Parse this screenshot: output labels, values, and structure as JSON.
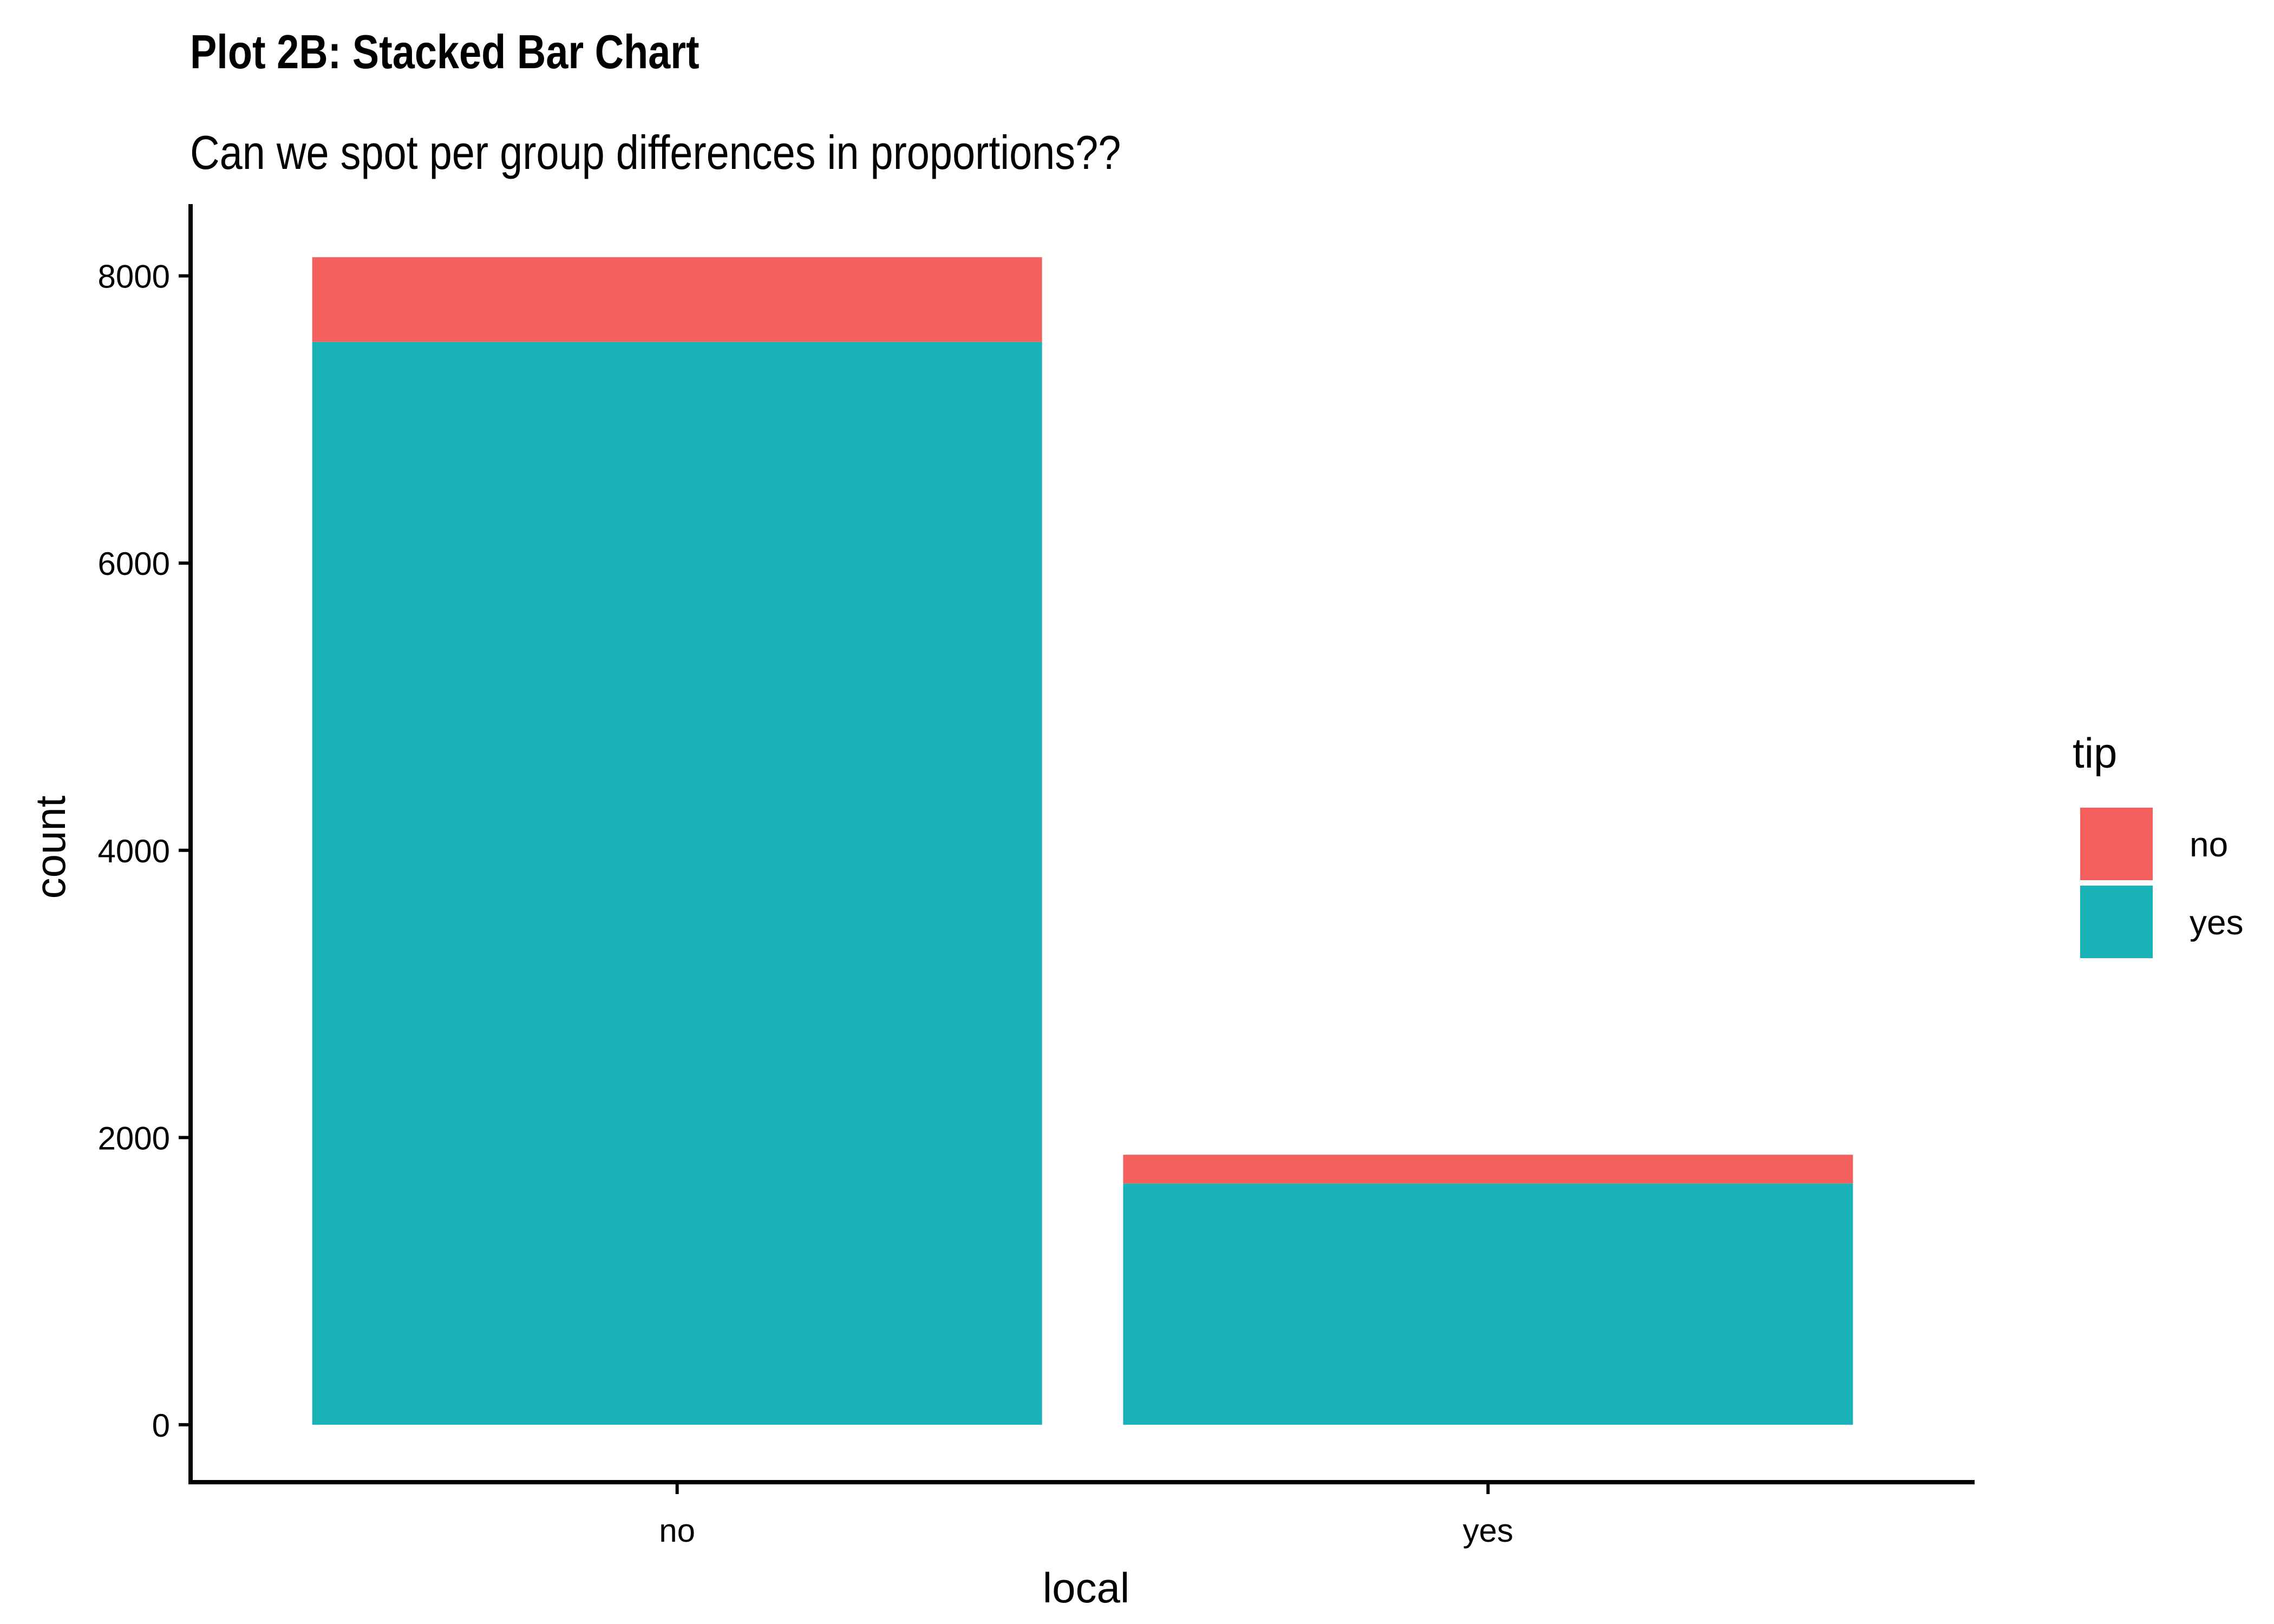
{
  "chart_data": {
    "type": "bar",
    "stacked": true,
    "title": "Plot 2B: Stacked Bar Chart",
    "subtitle": "Can we spot per group differences in proportions??",
    "xlabel": "local",
    "ylabel": "count",
    "categories": [
      "no",
      "yes"
    ],
    "series": [
      {
        "name": "yes",
        "values": [
          7540,
          1680
        ],
        "color": "#19B3B7"
      },
      {
        "name": "no",
        "values": [
          590,
          200
        ],
        "color": "#F3605E"
      }
    ],
    "ylim": [
      -400,
      8500
    ],
    "yticks": [
      0,
      2000,
      4000,
      6000,
      8000
    ],
    "grid": false,
    "legend": {
      "title": "tip",
      "position": "right",
      "entries": [
        {
          "label": "no",
          "color": "#F3605E"
        },
        {
          "label": "yes",
          "color": "#19B3B7"
        }
      ]
    }
  }
}
